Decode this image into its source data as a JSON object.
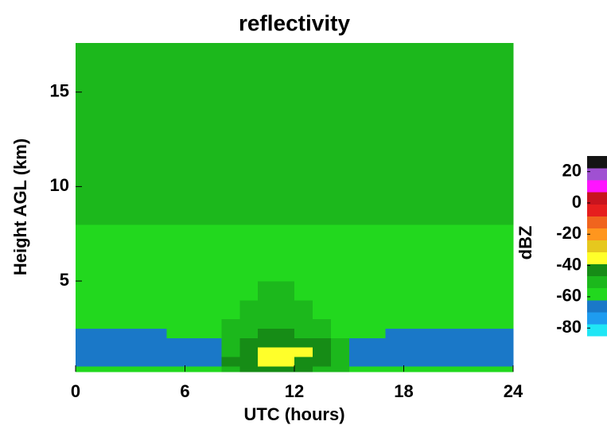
{
  "chart_data": {
    "type": "heatmap",
    "title": "reflectivity",
    "x_label": "UTC (hours)",
    "y_label": "Height AGL (km)",
    "xlim": [
      0,
      24
    ],
    "xticks": [
      0,
      6,
      12,
      18,
      24
    ],
    "ylim": [
      0.2,
      17.6
    ],
    "yticks": [
      5,
      10,
      15
    ],
    "x_edges": [
      0,
      1,
      2,
      3,
      4,
      5,
      6,
      7,
      8,
      9,
      10,
      11,
      12,
      13,
      14,
      15,
      16,
      17,
      18,
      19,
      20,
      21,
      22,
      23,
      24
    ],
    "y_edges": [
      0.2,
      0.5,
      1,
      1.5,
      2,
      2.5,
      3,
      3.5,
      4,
      5,
      6,
      7,
      8,
      10,
      12,
      17.6
    ],
    "values": [
      [
        -60,
        -60,
        -60,
        -60,
        -60,
        -60,
        -60,
        -60,
        -48,
        -45,
        -45,
        -45,
        -45,
        -48,
        -50,
        -60,
        -60,
        -60,
        -60,
        -60,
        -60,
        -60,
        -60,
        -60
      ],
      [
        -65,
        -65,
        -65,
        -65,
        -65,
        -65,
        -65,
        -65,
        -45,
        -40,
        -35,
        -38,
        -40,
        -45,
        -48,
        -65,
        -65,
        -65,
        -65,
        -65,
        -65,
        -65,
        -65,
        -65
      ],
      [
        -65,
        -65,
        -65,
        -65,
        -65,
        -65,
        -65,
        -65,
        -50,
        -42,
        -32,
        -33,
        -38,
        -45,
        -50,
        -65,
        -65,
        -65,
        -65,
        -65,
        -65,
        -65,
        -65,
        -65
      ],
      [
        -64,
        -64,
        -64,
        -64,
        -64,
        -64,
        -64,
        -64,
        -52,
        -45,
        -42,
        -42,
        -44,
        -46,
        -52,
        -64,
        -64,
        -64,
        -64,
        -64,
        -64,
        -64,
        -64,
        -64
      ],
      [
        -63,
        -63,
        -63,
        -63,
        -63,
        -60,
        -60,
        -58,
        -50,
        -47,
        -46,
        -46,
        -48,
        -50,
        -55,
        -58,
        -60,
        -63,
        -63,
        -63,
        -63,
        -63,
        -63,
        -63
      ],
      [
        -61,
        -61,
        -61,
        -61,
        -61,
        -61,
        -61,
        -58,
        -52,
        -48,
        -47,
        -48,
        -50,
        -52,
        -56,
        -58,
        -61,
        -61,
        -61,
        -61,
        -61,
        -61,
        -61,
        -61
      ],
      [
        -58,
        -58,
        -58,
        -58,
        -58,
        -58,
        -58,
        -58,
        -58,
        -52,
        -48,
        -50,
        -52,
        -56,
        -58,
        -58,
        -58,
        -58,
        -58,
        -58,
        -58,
        -58,
        -58,
        -58
      ],
      [
        -57,
        -57,
        -57,
        -57,
        -57,
        -57,
        -57,
        -57,
        -57,
        -53,
        -50,
        -50,
        -54,
        -57,
        -57,
        -57,
        -57,
        -57,
        -57,
        -57,
        -57,
        -57,
        -57,
        -57
      ],
      [
        -57,
        -57,
        -57,
        -57,
        -57,
        -57,
        -57,
        -57,
        -57,
        -57,
        -52,
        -54,
        -57,
        -57,
        -57,
        -57,
        -57,
        -57,
        -57,
        -57,
        -57,
        -57,
        -57,
        -57
      ],
      [
        -57,
        -57,
        -57,
        -57,
        -57,
        -57,
        -57,
        -57,
        -57,
        -57,
        -57,
        -57,
        -57,
        -57,
        -57,
        -57,
        -57,
        -57,
        -57,
        -57,
        -57,
        -57,
        -57,
        -57
      ],
      [
        -56,
        -56,
        -56,
        -56,
        -56,
        -56,
        -56,
        -56,
        -56,
        -56,
        -56,
        -56,
        -56,
        -56,
        -56,
        -56,
        -56,
        -56,
        -56,
        -56,
        -56,
        -56,
        -56,
        -56
      ],
      [
        -55,
        -55,
        -55,
        -55,
        -55,
        -55,
        -55,
        -55,
        -55,
        -55,
        -55,
        -55,
        -55,
        -55,
        -55,
        -55,
        -55,
        -55,
        -55,
        -55,
        -55,
        -55,
        -55,
        -55
      ],
      [
        -53,
        -53,
        -53,
        -53,
        -53,
        -53,
        -53,
        -53,
        -53,
        -53,
        -53,
        -53,
        -53,
        -53,
        -53,
        -53,
        -53,
        -53,
        -53,
        -53,
        -53,
        -53,
        -53,
        -53
      ],
      [
        -51,
        -51,
        -51,
        -51,
        -51,
        -51,
        -51,
        -51,
        -51,
        -51,
        -51,
        -51,
        -51,
        -51,
        -51,
        -51,
        -51,
        -51,
        -51,
        -51,
        -51,
        -51,
        -51,
        -51
      ],
      [
        -50,
        -50,
        -50,
        -50,
        -50,
        -50,
        -50,
        -50,
        -50,
        -50,
        -50,
        -50,
        -50,
        -50,
        -50,
        -50,
        -50,
        -50,
        -50,
        -50,
        -50,
        -50,
        -50,
        -50
      ]
    ],
    "colorbar": {
      "label": "dBZ",
      "clim": [
        -85,
        30
      ],
      "ticks": [
        -80,
        -60,
        -40,
        -20,
        0,
        20
      ],
      "colors": [
        "#20e6f5",
        "#1e9cf0",
        "#1a78c8",
        "#22d81e",
        "#1cb81c",
        "#168c16",
        "#ffff2a",
        "#e6c81e",
        "#ff961e",
        "#f0641e",
        "#e61e1e",
        "#c8141e",
        "#ff14ff",
        "#a050d2",
        "#141414"
      ]
    }
  }
}
